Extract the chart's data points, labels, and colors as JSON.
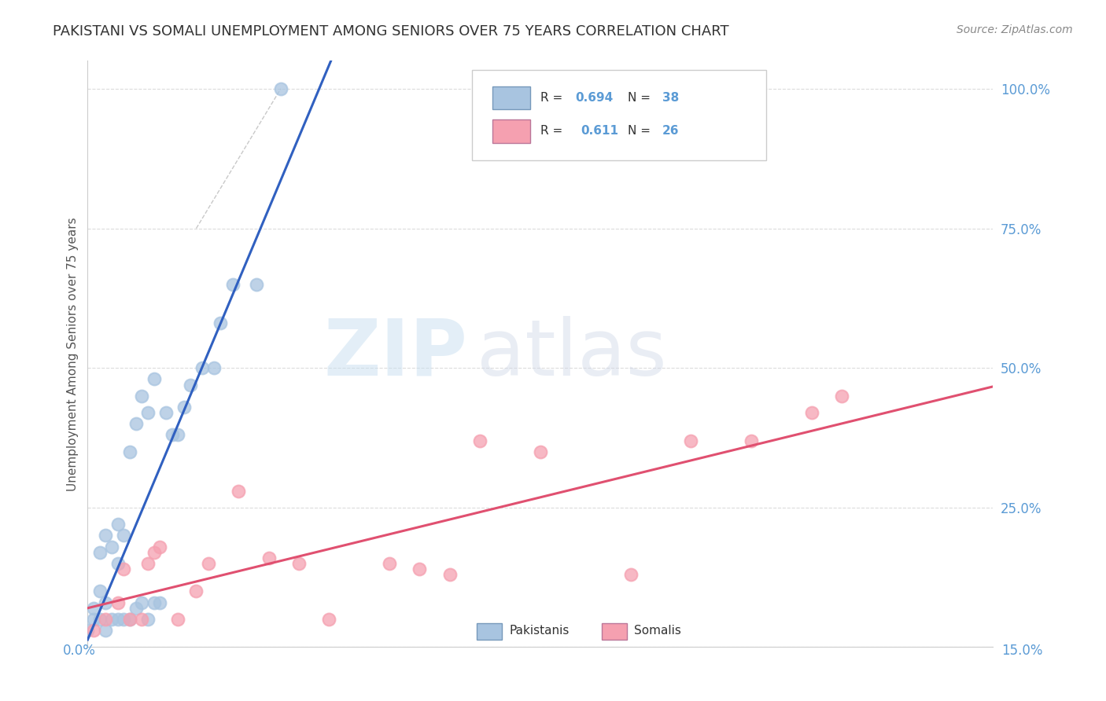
{
  "title": "PAKISTANI VS SOMALI UNEMPLOYMENT AMONG SENIORS OVER 75 YEARS CORRELATION CHART",
  "source": "Source: ZipAtlas.com",
  "ylabel": "Unemployment Among Seniors over 75 years",
  "xmin": 0.0,
  "xmax": 0.15,
  "ymin": 0.0,
  "ymax": 1.05,
  "pakistani_color": "#a8c4e0",
  "somali_color": "#f5a0b0",
  "pakistani_line_color": "#3060c0",
  "somali_line_color": "#e05070",
  "r_pakistani": "0.694",
  "n_pakistani": "38",
  "r_somali": "0.611",
  "n_somali": "26",
  "pak_x": [
    0.0,
    0.001,
    0.001,
    0.002,
    0.002,
    0.002,
    0.003,
    0.003,
    0.003,
    0.004,
    0.004,
    0.005,
    0.005,
    0.005,
    0.006,
    0.006,
    0.007,
    0.007,
    0.008,
    0.008,
    0.009,
    0.009,
    0.01,
    0.01,
    0.011,
    0.011,
    0.012,
    0.013,
    0.014,
    0.015,
    0.016,
    0.017,
    0.019,
    0.021,
    0.022,
    0.024,
    0.028,
    0.032
  ],
  "pak_y": [
    0.03,
    0.05,
    0.07,
    0.05,
    0.1,
    0.17,
    0.03,
    0.08,
    0.2,
    0.05,
    0.18,
    0.05,
    0.22,
    0.15,
    0.05,
    0.2,
    0.05,
    0.35,
    0.07,
    0.4,
    0.08,
    0.45,
    0.05,
    0.42,
    0.08,
    0.48,
    0.08,
    0.42,
    0.38,
    0.38,
    0.43,
    0.47,
    0.5,
    0.5,
    0.58,
    0.65,
    0.65,
    1.0
  ],
  "som_x": [
    0.001,
    0.003,
    0.005,
    0.006,
    0.007,
    0.009,
    0.01,
    0.011,
    0.012,
    0.015,
    0.018,
    0.02,
    0.025,
    0.03,
    0.035,
    0.04,
    0.05,
    0.055,
    0.06,
    0.065,
    0.075,
    0.09,
    0.1,
    0.11,
    0.12,
    0.125
  ],
  "som_y": [
    0.03,
    0.05,
    0.08,
    0.14,
    0.05,
    0.05,
    0.15,
    0.17,
    0.18,
    0.05,
    0.1,
    0.15,
    0.28,
    0.16,
    0.15,
    0.05,
    0.15,
    0.14,
    0.13,
    0.37,
    0.35,
    0.13,
    0.37,
    0.37,
    0.42,
    0.45
  ],
  "legend_pakistani_label": "Pakistanis",
  "legend_somali_label": "Somalis",
  "watermark_zip": "ZIP",
  "watermark_atlas": "atlas",
  "background_color": "#ffffff",
  "grid_color": "#cccccc",
  "accent_color": "#5b9bd5",
  "text_color": "#333333",
  "source_color": "#888888"
}
